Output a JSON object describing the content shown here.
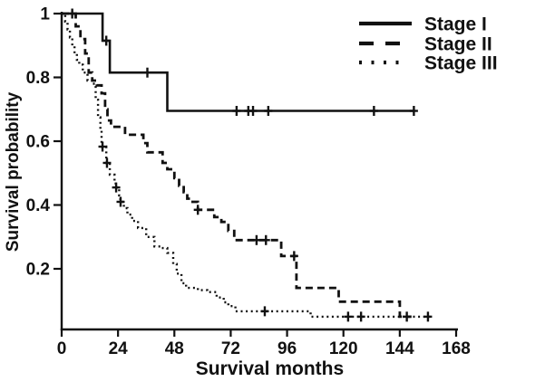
{
  "figure": {
    "background": "#ffffff",
    "ink": "#111111"
  },
  "chart_data": {
    "type": "line",
    "subtype": "kaplan-meier-step-survival",
    "title": "",
    "xlabel": "Survival months",
    "ylabel": "Survival probability",
    "xlim": [
      0,
      168
    ],
    "ylim": [
      0,
      1
    ],
    "x_ticks": [
      0,
      24,
      48,
      72,
      96,
      120,
      144,
      168
    ],
    "y_ticks": [
      1,
      0.8,
      0.6,
      0.4,
      0.2
    ],
    "grid": false,
    "legend_position": "top-right",
    "series": [
      {
        "name": "Stage I",
        "line_style": "solid",
        "color": "#111111",
        "steps": [
          [
            0,
            1.0
          ],
          [
            17.4,
            0.915
          ],
          [
            20.5,
            0.815
          ],
          [
            45,
            0.695
          ]
        ],
        "end_month": 150,
        "censor_marks": [
          [
            4.5,
            1.0
          ],
          [
            19,
            0.915
          ],
          [
            36.5,
            0.815
          ],
          [
            74.5,
            0.695
          ],
          [
            79.5,
            0.695
          ],
          [
            81.5,
            0.695
          ],
          [
            88,
            0.695
          ],
          [
            133,
            0.695
          ],
          [
            150,
            0.695
          ]
        ]
      },
      {
        "name": "Stage II",
        "line_style": "dashed",
        "color": "#111111",
        "steps": [
          [
            0,
            1.0
          ],
          [
            6,
            0.96
          ],
          [
            8,
            0.92
          ],
          [
            10,
            0.875
          ],
          [
            11.5,
            0.815
          ],
          [
            13,
            0.79
          ],
          [
            15,
            0.775
          ],
          [
            17,
            0.75
          ],
          [
            18.5,
            0.7
          ],
          [
            19.5,
            0.665
          ],
          [
            21,
            0.645
          ],
          [
            27,
            0.62
          ],
          [
            34.8,
            0.594
          ],
          [
            36.5,
            0.565
          ],
          [
            43,
            0.532
          ],
          [
            45,
            0.512
          ],
          [
            48,
            0.484
          ],
          [
            50,
            0.46
          ],
          [
            52,
            0.44
          ],
          [
            53.5,
            0.42
          ],
          [
            55,
            0.41
          ],
          [
            58,
            0.385
          ],
          [
            65,
            0.362
          ],
          [
            68,
            0.347
          ],
          [
            71,
            0.319
          ],
          [
            73.5,
            0.29
          ],
          [
            93.5,
            0.24
          ],
          [
            100,
            0.14
          ],
          [
            118,
            0.097
          ],
          [
            144,
            0.05
          ]
        ],
        "end_month": 149,
        "censor_marks": [
          [
            58,
            0.385
          ],
          [
            83,
            0.29
          ],
          [
            87,
            0.29
          ],
          [
            99,
            0.24
          ],
          [
            147,
            0.05
          ]
        ]
      },
      {
        "name": "Stage III",
        "line_style": "dotted",
        "color": "#111111",
        "steps": [
          [
            0,
            1.0
          ],
          [
            1.5,
            0.975
          ],
          [
            2.5,
            0.95
          ],
          [
            3.5,
            0.925
          ],
          [
            4.5,
            0.9
          ],
          [
            5.5,
            0.875
          ],
          [
            6.5,
            0.855
          ],
          [
            7.5,
            0.84
          ],
          [
            9,
            0.815
          ],
          [
            11,
            0.79
          ],
          [
            13,
            0.78
          ],
          [
            14.5,
            0.73
          ],
          [
            15.5,
            0.675
          ],
          [
            16.5,
            0.637
          ],
          [
            17,
            0.583
          ],
          [
            19,
            0.532
          ],
          [
            20.5,
            0.495
          ],
          [
            22.5,
            0.475
          ],
          [
            23,
            0.455
          ],
          [
            24.5,
            0.43
          ],
          [
            25,
            0.41
          ],
          [
            26.5,
            0.39
          ],
          [
            28,
            0.37
          ],
          [
            30,
            0.35
          ],
          [
            32.5,
            0.328
          ],
          [
            36,
            0.3
          ],
          [
            39.5,
            0.27
          ],
          [
            42,
            0.265
          ],
          [
            45,
            0.25
          ],
          [
            47.5,
            0.215
          ],
          [
            49,
            0.185
          ],
          [
            51,
            0.155
          ],
          [
            53,
            0.14
          ],
          [
            58,
            0.133
          ],
          [
            62,
            0.127
          ],
          [
            66,
            0.11
          ],
          [
            69,
            0.095
          ],
          [
            71,
            0.083
          ],
          [
            74,
            0.067
          ],
          [
            106,
            0.05
          ]
        ],
        "end_month": 158,
        "censor_marks": [
          [
            17.4,
            0.583
          ],
          [
            19.3,
            0.532
          ],
          [
            23.2,
            0.455
          ],
          [
            25.1,
            0.41
          ],
          [
            86.5,
            0.067
          ],
          [
            122,
            0.05
          ],
          [
            127.5,
            0.05
          ],
          [
            156,
            0.05
          ]
        ]
      }
    ]
  }
}
